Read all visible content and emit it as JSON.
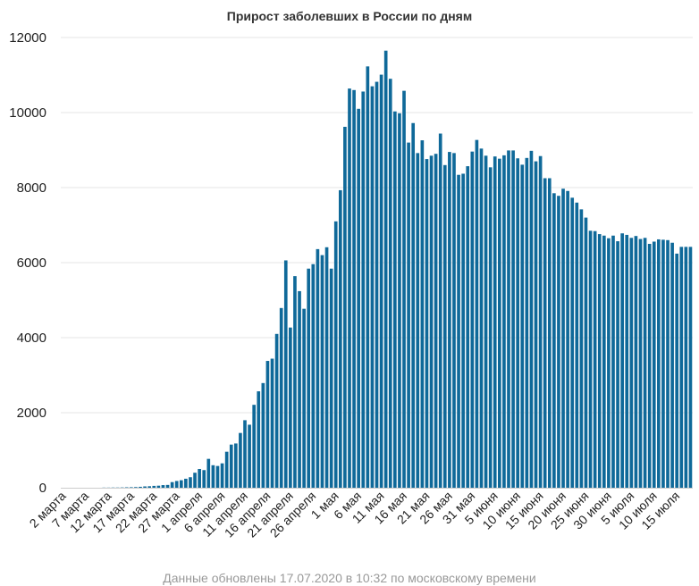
{
  "footer": {
    "note": "Данные обновлены 17.07.2020 в 10:32 по московскому времени"
  },
  "colors": {
    "bar": "#0f6999",
    "grid": "#e6e6e6",
    "axis": "#cccccc"
  },
  "chart_data": {
    "type": "bar",
    "title": "Прирост заболевших в России по дням",
    "xlabel": "",
    "ylabel": "",
    "ylim": [
      0,
      12000
    ],
    "yticks": [
      0,
      2000,
      4000,
      6000,
      8000,
      10000,
      12000
    ],
    "grid": true,
    "legend": "none",
    "x_tick_labels": [
      "2 марта",
      "7 марта",
      "12 марта",
      "17 марта",
      "22 марта",
      "27 марта",
      "1 апреля",
      "6 апреля",
      "11 апреля",
      "16 апреля",
      "21 апреля",
      "26 апреля",
      "1 мая",
      "6 мая",
      "11 мая",
      "16 мая",
      "21 мая",
      "26 мая",
      "31 мая",
      "5 июня",
      "10 июня",
      "15 июня",
      "20 июня",
      "25 июня",
      "30 июня",
      "5 июля",
      "10 июля",
      "15 июля"
    ],
    "values": [
      0,
      0,
      0,
      0,
      0,
      0,
      0,
      0,
      0,
      4,
      4,
      6,
      6,
      8,
      12,
      14,
      18,
      25,
      35,
      40,
      50,
      55,
      70,
      75,
      150,
      180,
      200,
      240,
      280,
      400,
      500,
      470,
      770,
      600,
      580,
      650,
      960,
      1150,
      1180,
      1460,
      1800,
      1680,
      2210,
      2570,
      2790,
      3380,
      3440,
      4100,
      4790,
      6060,
      4270,
      5640,
      5240,
      4770,
      5840,
      5960,
      6360,
      6200,
      6410,
      5840,
      7100,
      7930,
      9620,
      10640,
      10600,
      10100,
      10560,
      11230,
      10700,
      10820,
      11010,
      11650,
      10900,
      10030,
      9980,
      10580,
      9200,
      9720,
      8920,
      9260,
      8760,
      8850,
      8900,
      9440,
      8600,
      8950,
      8920,
      8340,
      8370,
      8570,
      8960,
      9270,
      9040,
      8850,
      8540,
      8830,
      8770,
      8860,
      8990,
      8990,
      8780,
      8610,
      8790,
      8980,
      8700,
      8840,
      8250,
      8250,
      7850,
      7780,
      7970,
      7910,
      7730,
      7600,
      7420,
      7200,
      6850,
      6840,
      6760,
      6720,
      6650,
      6720,
      6570,
      6780,
      6740,
      6660,
      6710,
      6630,
      6660,
      6500,
      6560,
      6620,
      6610,
      6600,
      6530,
      6240,
      6420,
      6420,
      6420
    ]
  }
}
